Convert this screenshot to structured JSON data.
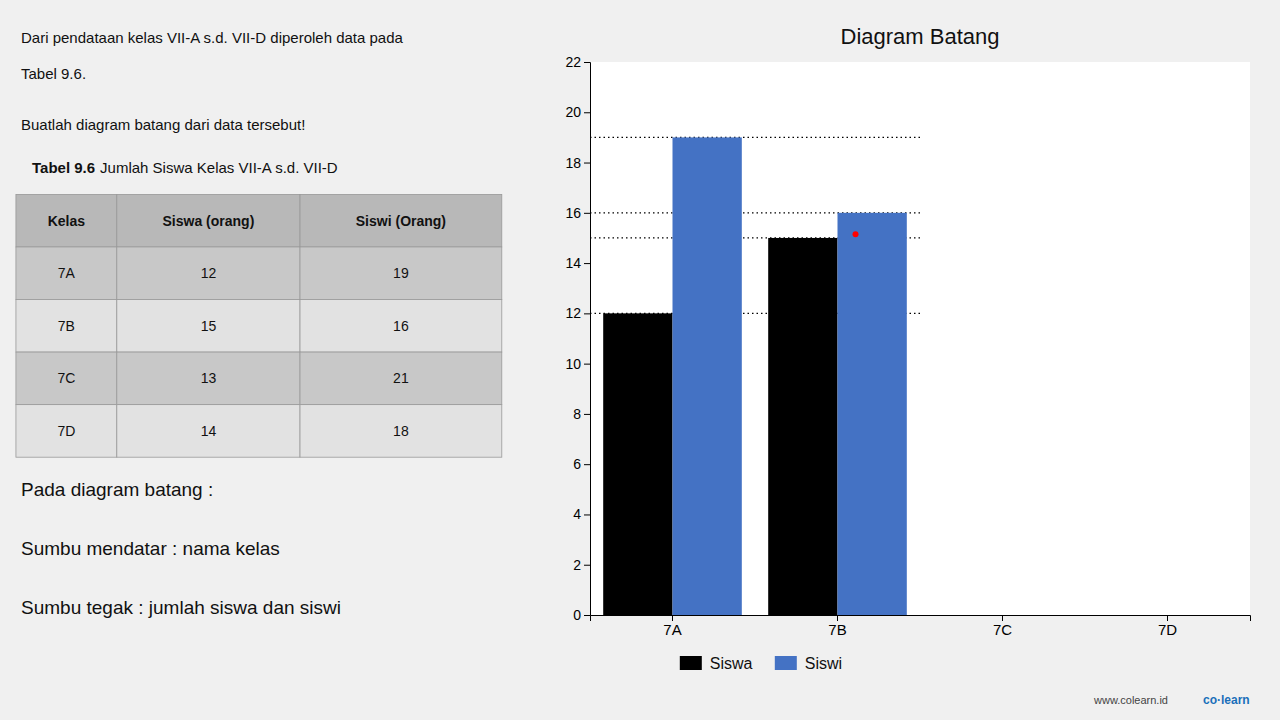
{
  "chart_data": {
    "type": "bar",
    "title": "Diagram Batang",
    "categories": [
      "7A",
      "7B",
      "7C",
      "7D"
    ],
    "series": [
      {
        "name": "Siswa",
        "color": "#000000",
        "values": [
          12,
          15,
          0,
          0
        ]
      },
      {
        "name": "Siswi",
        "color": "#4472C4",
        "values": [
          19,
          16,
          0,
          0
        ]
      }
    ],
    "ylim": [
      0,
      22
    ],
    "yticks": [
      0,
      2,
      4,
      6,
      8,
      10,
      12,
      14,
      16,
      18,
      20,
      22
    ],
    "grid": false,
    "legend": "bottom",
    "reference_lines": [
      12,
      15,
      16,
      19
    ],
    "markers": [
      {
        "category": "7B",
        "value": 15.15,
        "color": "red"
      }
    ]
  },
  "text_panel": {
    "lines": [
      "Dari pendataan kelas VII-A s.d. VII-D diperoleh data pada",
      "Tabel 9.6.",
      "Buatlah diagram batang dari data tersebut!"
    ],
    "table_title": [
      "Tabel 9.6",
      "Jumlah Siswa Kelas VII-A s.d. VII-D"
    ],
    "table": {
      "headers": [
        "Kelas",
        "Siswa (orang)",
        "Siswi (Orang)"
      ],
      "rows": [
        [
          "7A",
          "12",
          "19"
        ],
        [
          "7B",
          "15",
          "16"
        ],
        [
          "7C",
          "13",
          "21"
        ],
        [
          "7D",
          "14",
          "18"
        ]
      ]
    },
    "notes": [
      "Pada diagram batang :",
      "Sumbu mendatar : nama kelas",
      "Sumbu tegak : jumlah siswa dan siswi"
    ],
    "credits": [
      "www.colearn.id",
      "co·learn"
    ]
  }
}
